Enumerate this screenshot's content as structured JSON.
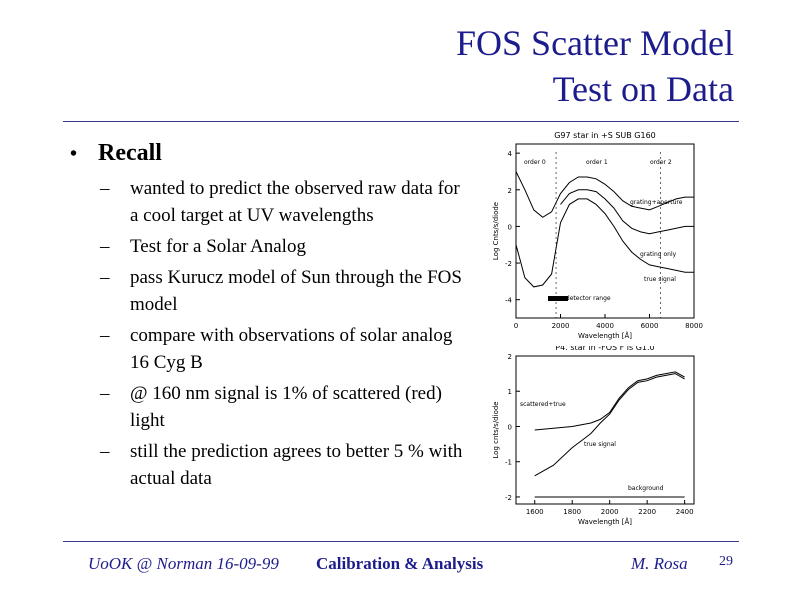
{
  "slide": {
    "title_line1": "FOS Scatter Model",
    "title_line2": "Test on Data",
    "main_bullet": "Recall",
    "sub_bullets": [
      "wanted to predict the observed raw data for a cool target at UV wavelengths",
      "Test for a Solar Analog",
      "pass Kurucz model of Sun through the FOS model",
      "compare with observations of solar analog 16 Cyg B",
      "@ 160 nm signal is 1% of scattered (red) light",
      "still the prediction agrees to better 5 % with actual data"
    ]
  },
  "footer": {
    "left": "UoOK @ Norman  16-09-99",
    "center": "Calibration & Analysis",
    "right": "M. Rosa",
    "page": "29"
  },
  "chart_data": [
    {
      "type": "line",
      "title": "G97 star in +S SUB G160",
      "xlabel": "Wavelength [Å]",
      "ylabel": "Log Cnts/s/diode",
      "xticks": [
        "0",
        "2000",
        "4000",
        "6000",
        "8000"
      ],
      "yticks": [
        "4",
        "2",
        "0",
        "-2",
        "-4"
      ],
      "xlim": [
        0,
        8000
      ],
      "ylim": [
        -5,
        4.5
      ],
      "region_labels": [
        "order 0",
        "order 1",
        "order 2"
      ],
      "annotations": [
        "grating+aperture",
        "grating only",
        "true signal",
        "— detector range"
      ],
      "series": [
        {
          "x": [
            0,
            400,
            800,
            1200,
            1600,
            2000,
            2400,
            2800,
            3200,
            3600,
            4000,
            4400,
            4800,
            5200,
            5600,
            6000,
            6400,
            6800,
            7200,
            7600,
            8000
          ],
          "y": [
            3.0,
            2.0,
            0.9,
            0.5,
            0.8,
            1.8,
            2.4,
            2.7,
            2.7,
            2.6,
            2.3,
            1.9,
            1.4,
            1.1,
            1.0,
            0.9,
            1.1,
            1.3,
            1.5,
            1.6,
            1.6
          ]
        },
        {
          "x": [
            2000,
            2400,
            2800,
            3200,
            3600,
            4000,
            4400,
            4800,
            5200,
            5600,
            6000,
            6400,
            6800,
            7200,
            7600,
            8000
          ],
          "y": [
            1.2,
            1.8,
            2.0,
            2.0,
            1.9,
            1.5,
            1.0,
            0.3,
            -0.1,
            -0.3,
            -0.4,
            -0.3,
            -0.2,
            -0.1,
            0.0,
            0.0
          ]
        },
        {
          "x": [
            0,
            400,
            800,
            1200,
            1600,
            2000,
            2400,
            2800,
            3200,
            3600,
            4000,
            4400,
            4800,
            5200,
            5600,
            6000,
            6400,
            6800,
            7200,
            7600,
            8000
          ],
          "y": [
            -1.0,
            -2.8,
            -3.3,
            -3.2,
            -2.6,
            0.2,
            1.2,
            1.5,
            1.5,
            1.2,
            0.7,
            0.0,
            -0.8,
            -1.4,
            -1.8,
            -2.1,
            -2.2,
            -2.3,
            -2.4,
            -2.5,
            -2.5
          ]
        }
      ]
    },
    {
      "type": "line",
      "title": "P4. star in -FOS F is G1.0",
      "xlabel": "Wavelength [Å]",
      "ylabel": "Log cnts/s/diode",
      "xticks": [
        "1600",
        "1800",
        "2000",
        "2200",
        "2400"
      ],
      "yticks": [
        "2",
        "1",
        "0",
        "-1",
        "-2"
      ],
      "xlim": [
        1500,
        2450
      ],
      "ylim": [
        -2.2,
        2.0
      ],
      "annotations": [
        "scattered+true",
        "true signal",
        "background"
      ],
      "series": [
        {
          "x": [
            1600,
            1700,
            1800,
            1900,
            1950,
            2000,
            2050,
            2100,
            2150,
            2200,
            2250,
            2300,
            2350,
            2400
          ],
          "y": [
            -0.1,
            -0.05,
            0.0,
            0.1,
            0.2,
            0.4,
            0.8,
            1.1,
            1.3,
            1.35,
            1.45,
            1.5,
            1.55,
            1.4
          ]
        },
        {
          "x": [
            1600,
            1700,
            1800,
            1850,
            1900,
            1950,
            2000,
            2050,
            2100,
            2150,
            2200,
            2250,
            2300,
            2350,
            2400
          ],
          "y": [
            -1.4,
            -1.1,
            -0.6,
            -0.4,
            -0.2,
            0.1,
            0.35,
            0.75,
            1.05,
            1.25,
            1.3,
            1.4,
            1.45,
            1.5,
            1.35
          ]
        },
        {
          "x": [
            1600,
            1800,
            2000,
            2200,
            2400
          ],
          "y": [
            -2.0,
            -2.0,
            -2.0,
            -2.0,
            -2.0
          ]
        }
      ]
    }
  ]
}
